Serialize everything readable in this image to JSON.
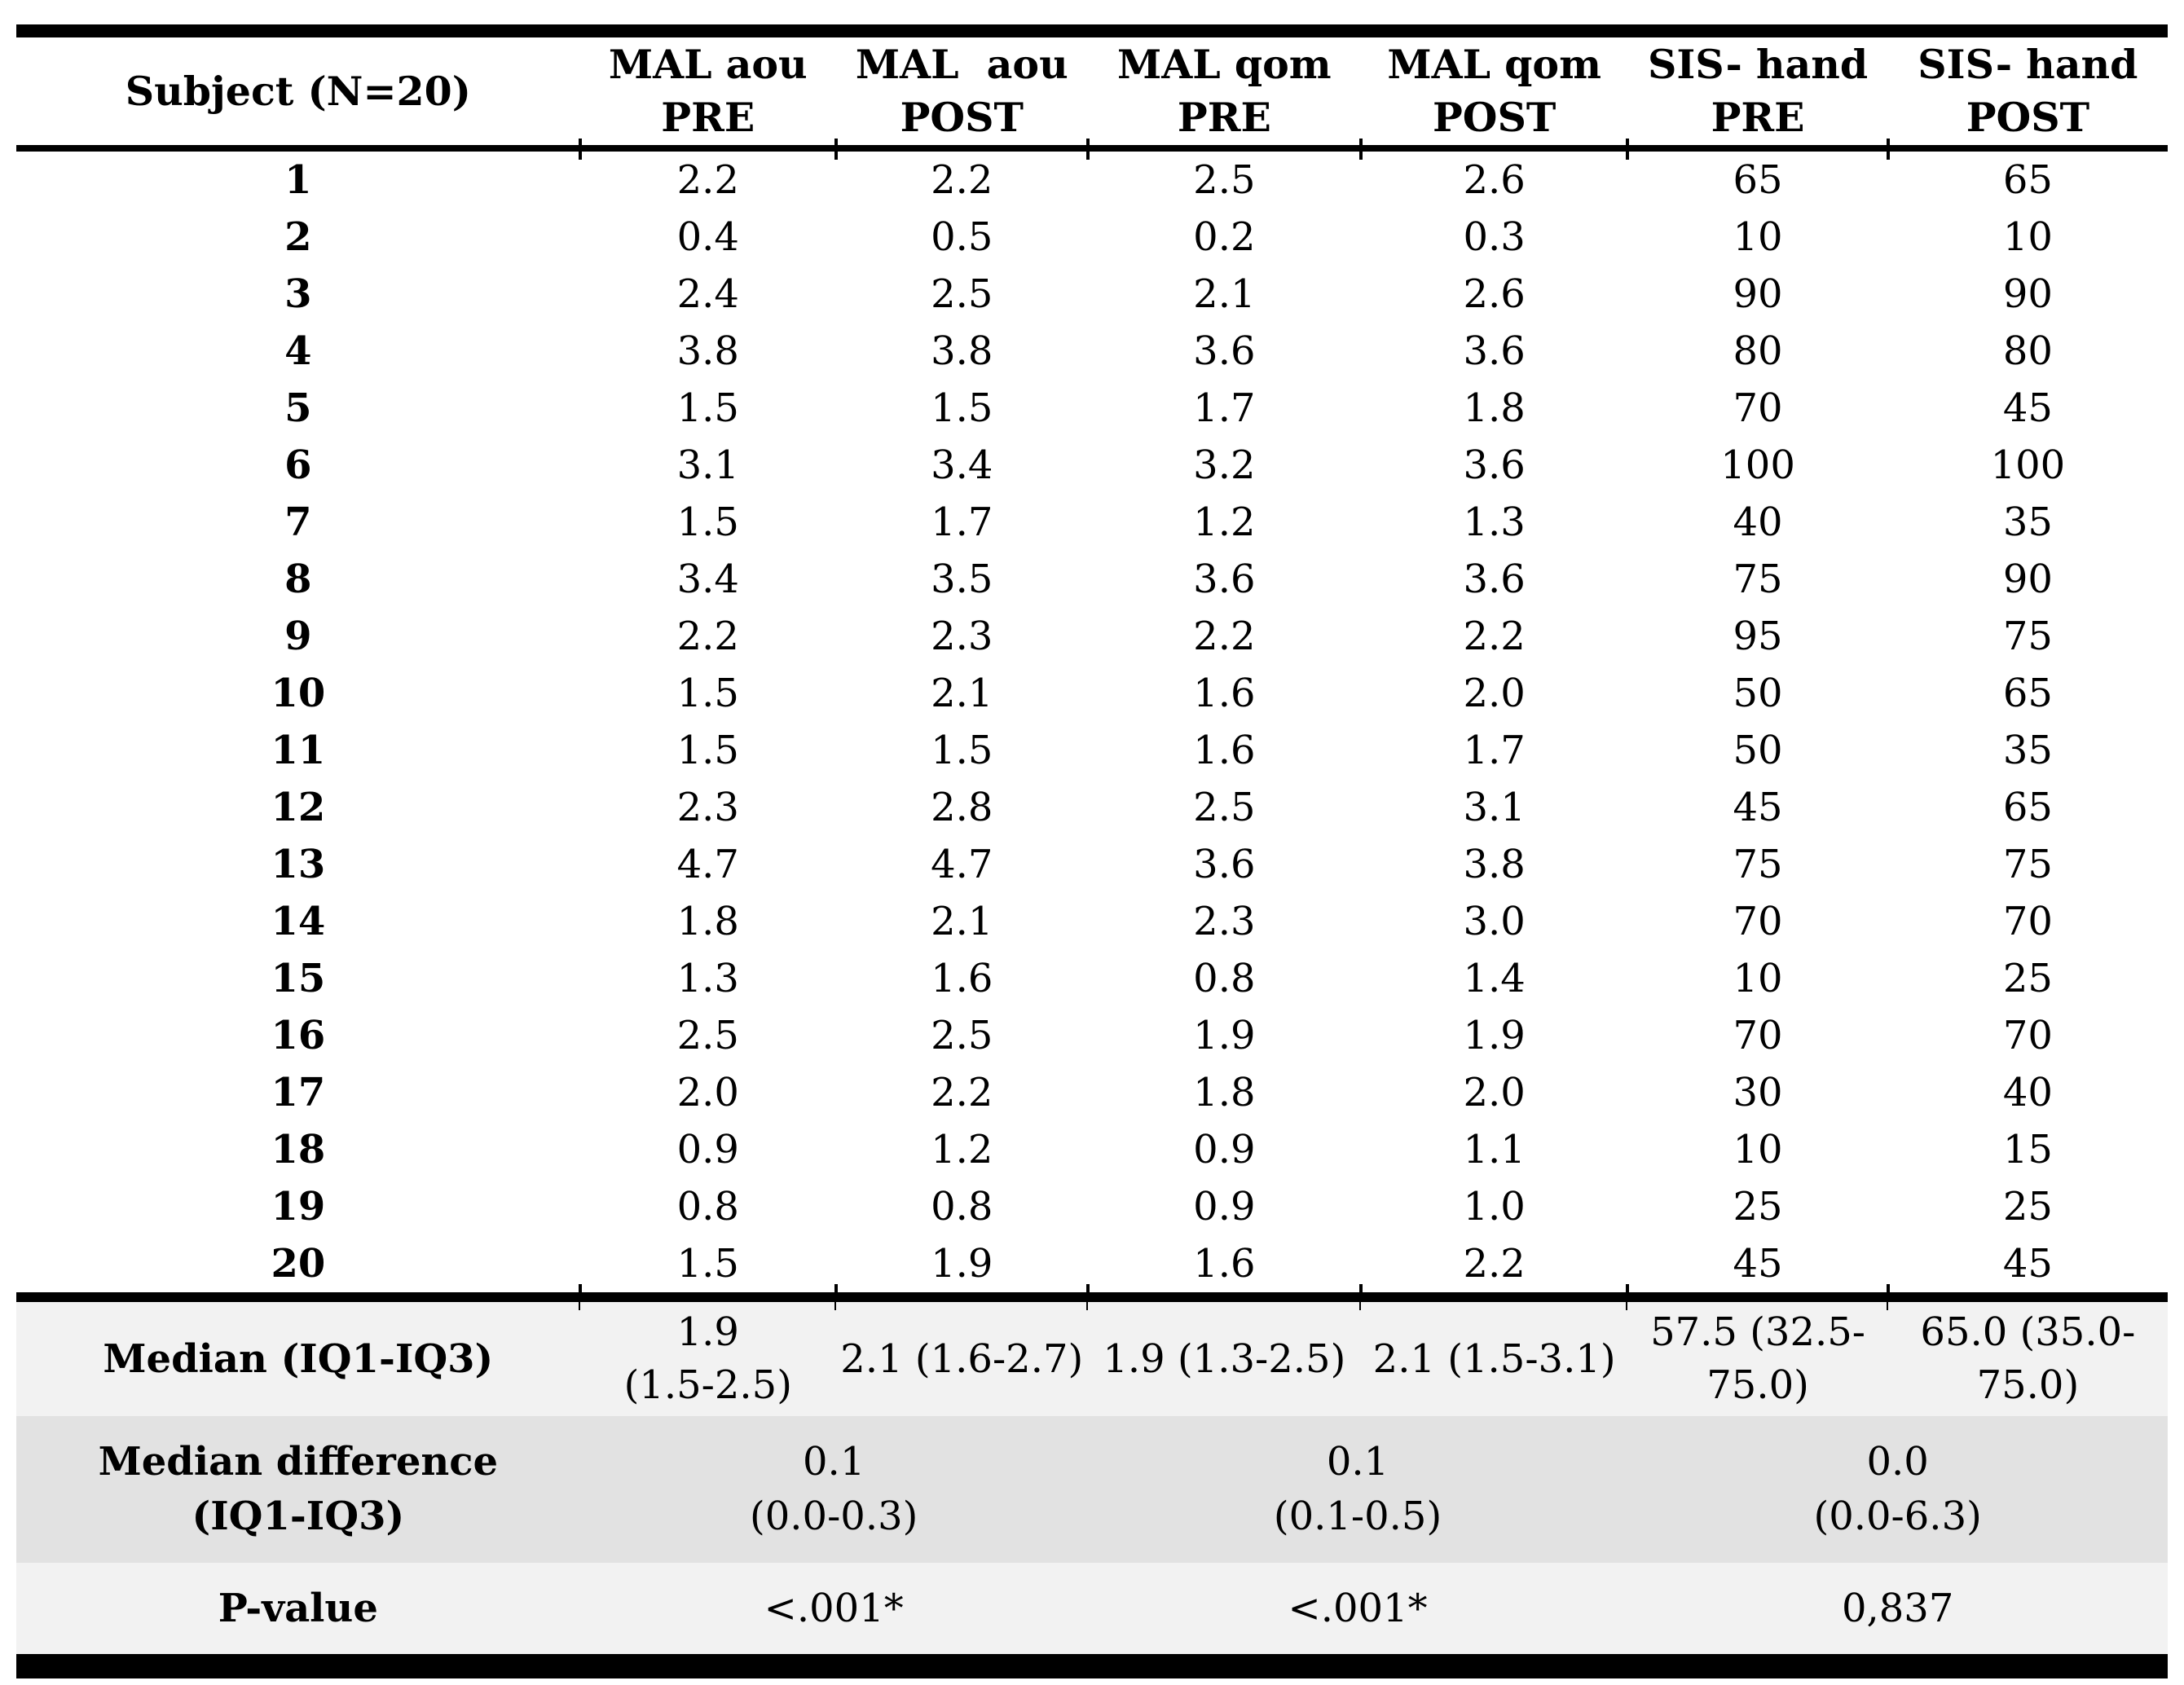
{
  "table": {
    "columns": [
      "Subject (N=20)",
      "MAL aou\nPRE",
      "MAL  aou\nPOST",
      "MAL qom\nPRE",
      "MAL qom\nPOST",
      "SIS- hand\nPRE",
      "SIS- hand\nPOST"
    ],
    "rows": [
      [
        "1",
        "2.2",
        "2.2",
        "2.5",
        "2.6",
        "65",
        "65"
      ],
      [
        "2",
        "0.4",
        "0.5",
        "0.2",
        "0.3",
        "10",
        "10"
      ],
      [
        "3",
        "2.4",
        "2.5",
        "2.1",
        "2.6",
        "90",
        "90"
      ],
      [
        "4",
        "3.8",
        "3.8",
        "3.6",
        "3.6",
        "80",
        "80"
      ],
      [
        "5",
        "1.5",
        "1.5",
        "1.7",
        "1.8",
        "70",
        "45"
      ],
      [
        "6",
        "3.1",
        "3.4",
        "3.2",
        "3.6",
        "100",
        "100"
      ],
      [
        "7",
        "1.5",
        "1.7",
        "1.2",
        "1.3",
        "40",
        "35"
      ],
      [
        "8",
        "3.4",
        "3.5",
        "3.6",
        "3.6",
        "75",
        "90"
      ],
      [
        "9",
        "2.2",
        "2.3",
        "2.2",
        "2.2",
        "95",
        "75"
      ],
      [
        "10",
        "1.5",
        "2.1",
        "1.6",
        "2.0",
        "50",
        "65"
      ],
      [
        "11",
        "1.5",
        "1.5",
        "1.6",
        "1.7",
        "50",
        "35"
      ],
      [
        "12",
        "2.3",
        "2.8",
        "2.5",
        "3.1",
        "45",
        "65"
      ],
      [
        "13",
        "4.7",
        "4.7",
        "3.6",
        "3.8",
        "75",
        "75"
      ],
      [
        "14",
        "1.8",
        "2.1",
        "2.3",
        "3.0",
        "70",
        "70"
      ],
      [
        "15",
        "1.3",
        "1.6",
        "0.8",
        "1.4",
        "10",
        "25"
      ],
      [
        "16",
        "2.5",
        "2.5",
        "1.9",
        "1.9",
        "70",
        "70"
      ],
      [
        "17",
        "2.0",
        "2.2",
        "1.8",
        "2.0",
        "30",
        "40"
      ],
      [
        "18",
        "0.9",
        "1.2",
        "0.9",
        "1.1",
        "10",
        "15"
      ],
      [
        "19",
        "0.8",
        "0.8",
        "0.9",
        "1.0",
        "25",
        "25"
      ],
      [
        "20",
        "1.5",
        "1.9",
        "1.6",
        "2.2",
        "45",
        "45"
      ]
    ],
    "median": {
      "label": "Median (IQ1-IQ3)",
      "values": [
        "1.9\n(1.5-2.5)",
        "2.1 (1.6-2.7)",
        "1.9 (1.3-2.5)",
        "2.1 (1.5-3.1)",
        "57.5 (32.5-\n75.0)",
        "65.0 (35.0-\n75.0)"
      ]
    },
    "median_difference": {
      "label": "Median difference\n(IQ1-IQ3)",
      "values": [
        "0.1\n(0.0-0.3)",
        "0.1\n(0.1-0.5)",
        "0.0\n(0.0-6.3)"
      ]
    },
    "p_value": {
      "label": "P-value",
      "values": [
        "<.001*",
        "<.001*",
        "0,837"
      ]
    }
  },
  "colors": {
    "row_shade_light": "#f2f2f2",
    "row_shade_dark": "#e2e2e2",
    "rule": "#000000"
  }
}
